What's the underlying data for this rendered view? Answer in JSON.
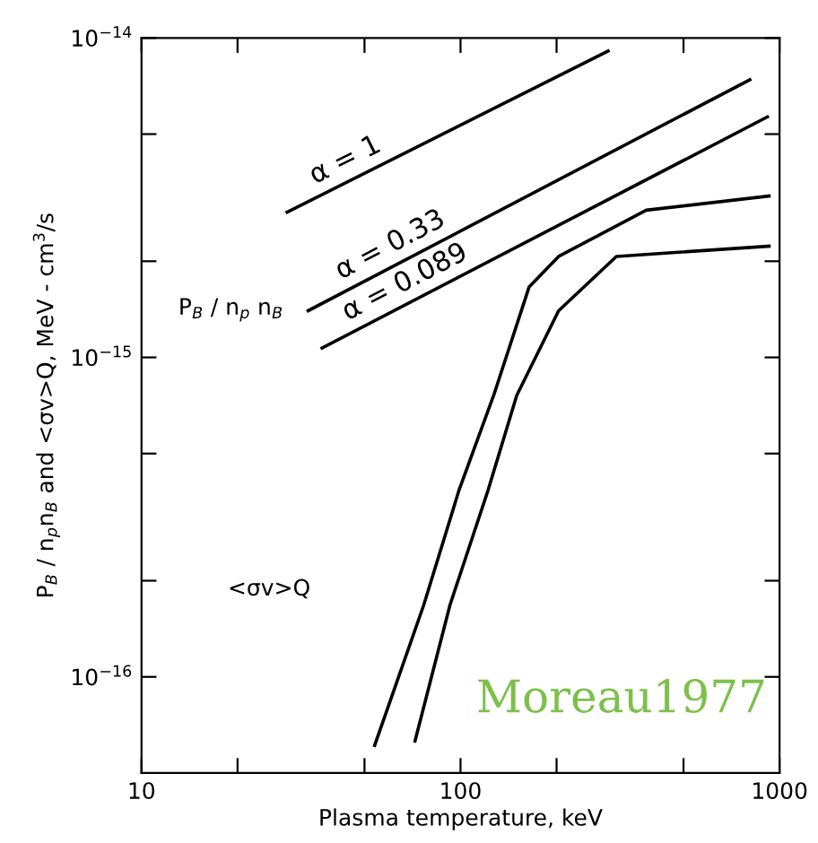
{
  "chart_data": {
    "type": "line",
    "xlabel": "Plasma temperature, keV",
    "ylabel": "P$_{B}$ / n$_{p}$n$_{B}$ and <σv>Q, MeV - cm$^{3}$/s",
    "log": "xy",
    "xlim": [
      10,
      1000
    ],
    "ylim": [
      5e-17,
      1e-14
    ],
    "xticks": [
      10,
      {
        "value": 20,
        "label": null
      },
      {
        "value": 50,
        "label": null
      },
      100,
      {
        "value": 200,
        "label": null
      },
      {
        "value": 500,
        "label": null
      },
      1000
    ],
    "yticks": [
      {
        "value": 1e-16,
        "label": "10$^{−16}$"
      },
      {
        "value": 2e-16,
        "label": null
      },
      {
        "value": 5e-16,
        "label": null
      },
      {
        "value": 1e-15,
        "label": "10$^{−15}$"
      },
      {
        "value": 2e-15,
        "label": null
      },
      {
        "value": 5e-15,
        "label": null
      },
      {
        "value": 1e-14,
        "label": "10$^{−14}$"
      }
    ],
    "grid": false,
    "legend": false,
    "marker": "none",
    "line_style": "solid",
    "series": [
      {
        "name": "α = 1",
        "color": "#000000",
        "x": [
          28.6,
          290
        ],
        "values": [
          2.85e-15,
          9.1e-15
        ]
      },
      {
        "name": "α = 0.33",
        "color": "#000000",
        "x": [
          33.3,
          807
        ],
        "values": [
          1.4e-15,
          7.4e-15
        ]
      },
      {
        "name": "α = 0.089",
        "color": "#000000",
        "x": [
          36.8,
          916
        ],
        "values": [
          1.07e-15,
          5.66e-15
        ]
      },
      {
        "color": "#000000",
        "x": [
          53.8,
          76.7,
          98.9,
          127,
          164,
          203,
          382,
          927
        ],
        "values": [
          6.1e-17,
          1.68e-16,
          3.84e-16,
          7.6e-16,
          1.66e-15,
          2.07e-15,
          2.89e-15,
          3.2e-15
        ]
      },
      {
        "color": "#000000",
        "x": [
          72,
          92.7,
          122,
          150,
          203,
          308,
          927
        ],
        "values": [
          6.3e-17,
          1.68e-16,
          3.84e-16,
          7.6e-16,
          1.4e-15,
          2.07e-15,
          2.23e-15
        ]
      }
    ],
    "annotations": [
      "P$_{B}$ / n$_{p}$ n$_{B}$",
      "<σv>Q",
      "Moreau1977"
    ]
  }
}
